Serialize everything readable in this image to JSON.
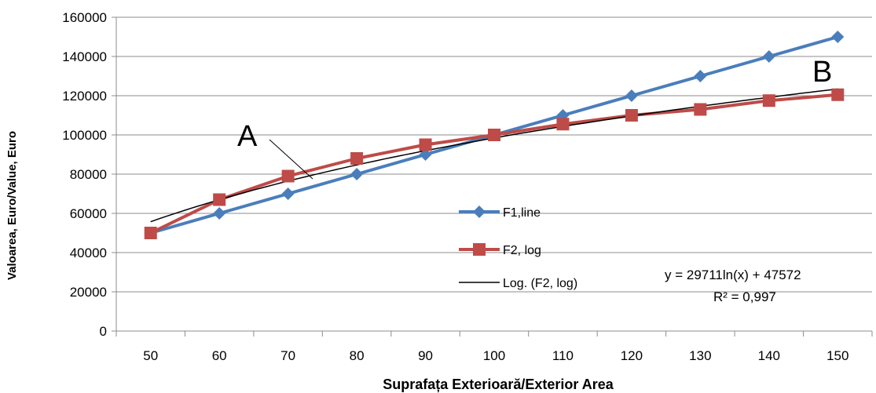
{
  "chart_data": {
    "type": "line",
    "title": "",
    "xlabel": "Suprafața Exterioară/Exterior Area",
    "ylabel": "Valoarea, Euro/Value, Euro",
    "x": [
      50,
      60,
      70,
      80,
      90,
      100,
      110,
      120,
      130,
      140,
      150
    ],
    "x_tick_labels": [
      "50",
      "60",
      "70",
      "80",
      "90",
      "100",
      "110",
      "120",
      "130",
      "140",
      "150"
    ],
    "ylim": [
      0,
      160000
    ],
    "y_ticks": [
      0,
      20000,
      40000,
      60000,
      80000,
      100000,
      120000,
      140000,
      160000
    ],
    "y_tick_labels": [
      "0",
      "20000",
      "40000",
      "60000",
      "80000",
      "100000",
      "120000",
      "140000",
      "160000"
    ],
    "grid": "horizontal",
    "legend_position": "center-right",
    "series": [
      {
        "name": "F1,line",
        "color": "#4a7ebb",
        "marker": "diamond",
        "values": [
          50000,
          60000,
          70000,
          80000,
          90000,
          100000,
          110000,
          120000,
          130000,
          140000,
          150000
        ]
      },
      {
        "name": "F2, log",
        "color": "#be4b48",
        "marker": "square",
        "values": [
          50000,
          67000,
          79000,
          88000,
          95000,
          100000,
          105500,
          110000,
          113000,
          117500,
          120500
        ]
      }
    ],
    "trendline": {
      "name": "Log. (F2, log)",
      "color": "#000000",
      "type": "logarithmic",
      "equation": "y = 29711ln(x) + 47572",
      "r_squared": "R² = 0,997"
    },
    "annotations": [
      "A",
      "B"
    ]
  }
}
